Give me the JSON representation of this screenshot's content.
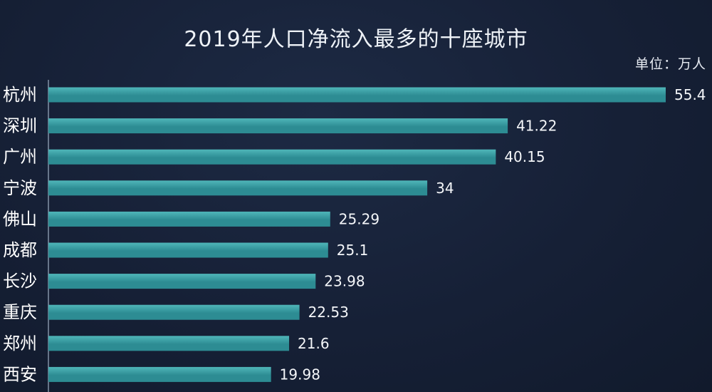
{
  "header": {
    "title": "2019年人口净流入最多的十座城市",
    "unit": "单位：万人"
  },
  "colors": {
    "bar": "#2d8c93",
    "bar_highlight": "#4fb6b9",
    "axis": "#9fb0c3"
  },
  "chart_data": {
    "type": "bar",
    "orientation": "horizontal",
    "title": "2019年人口净流入最多的十座城市",
    "unit": "单位：万人",
    "categories": [
      "杭州",
      "深圳",
      "广州",
      "宁波",
      "佛山",
      "成都",
      "长沙",
      "重庆",
      "郑州",
      "西安"
    ],
    "values": [
      55.4,
      41.22,
      40.15,
      34,
      25.29,
      25.1,
      23.98,
      22.53,
      21.6,
      19.98
    ],
    "value_labels": [
      "55.4",
      "41.22",
      "40.15",
      "34",
      "25.29",
      "25.1",
      "23.98",
      "22.53",
      "21.6",
      "19.98"
    ],
    "xlim": [
      0,
      55.4
    ],
    "grid": false,
    "legend": "none"
  }
}
